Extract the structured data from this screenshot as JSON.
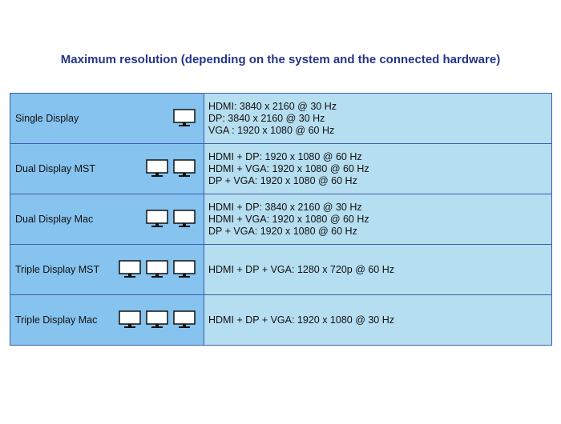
{
  "title": "Maximum resolution (depending on the system and the connected hardware)",
  "rows": [
    {
      "label": "Single Display",
      "monitors": 1,
      "lines": [
        "HDMI: 3840 x 2160 @ 30 Hz",
        "DP: 3840 x 2160 @ 30 Hz",
        "VGA : 1920 x 1080 @ 60 Hz"
      ]
    },
    {
      "label": "Dual Display MST",
      "monitors": 2,
      "lines": [
        "HDMI + DP: 1920 x 1080 @ 60 Hz",
        "HDMI + VGA: 1920 x 1080 @ 60 Hz",
        "DP + VGA: 1920 x 1080 @ 60 Hz"
      ]
    },
    {
      "label": "Dual Display Mac",
      "monitors": 2,
      "lines": [
        "HDMI + DP: 3840 x 2160 @ 30 Hz",
        "HDMI + VGA: 1920 x 1080 @ 60 Hz",
        "DP + VGA: 1920 x 1080 @ 60 Hz"
      ]
    },
    {
      "label": "Triple Display MST",
      "monitors": 3,
      "lines": [
        "HDMI + DP + VGA: 1280 x 720p @ 60 Hz"
      ]
    },
    {
      "label": "Triple Display Mac",
      "monitors": 3,
      "lines": [
        "HDMI + DP + VGA: 1920 x 1080 @ 30 Hz"
      ]
    }
  ],
  "colors": {
    "title": "#25348a",
    "label_cell": "#86c3ef",
    "value_cell": "#b6def1",
    "border": "#3d5ea6"
  },
  "icon": "monitor-icon"
}
